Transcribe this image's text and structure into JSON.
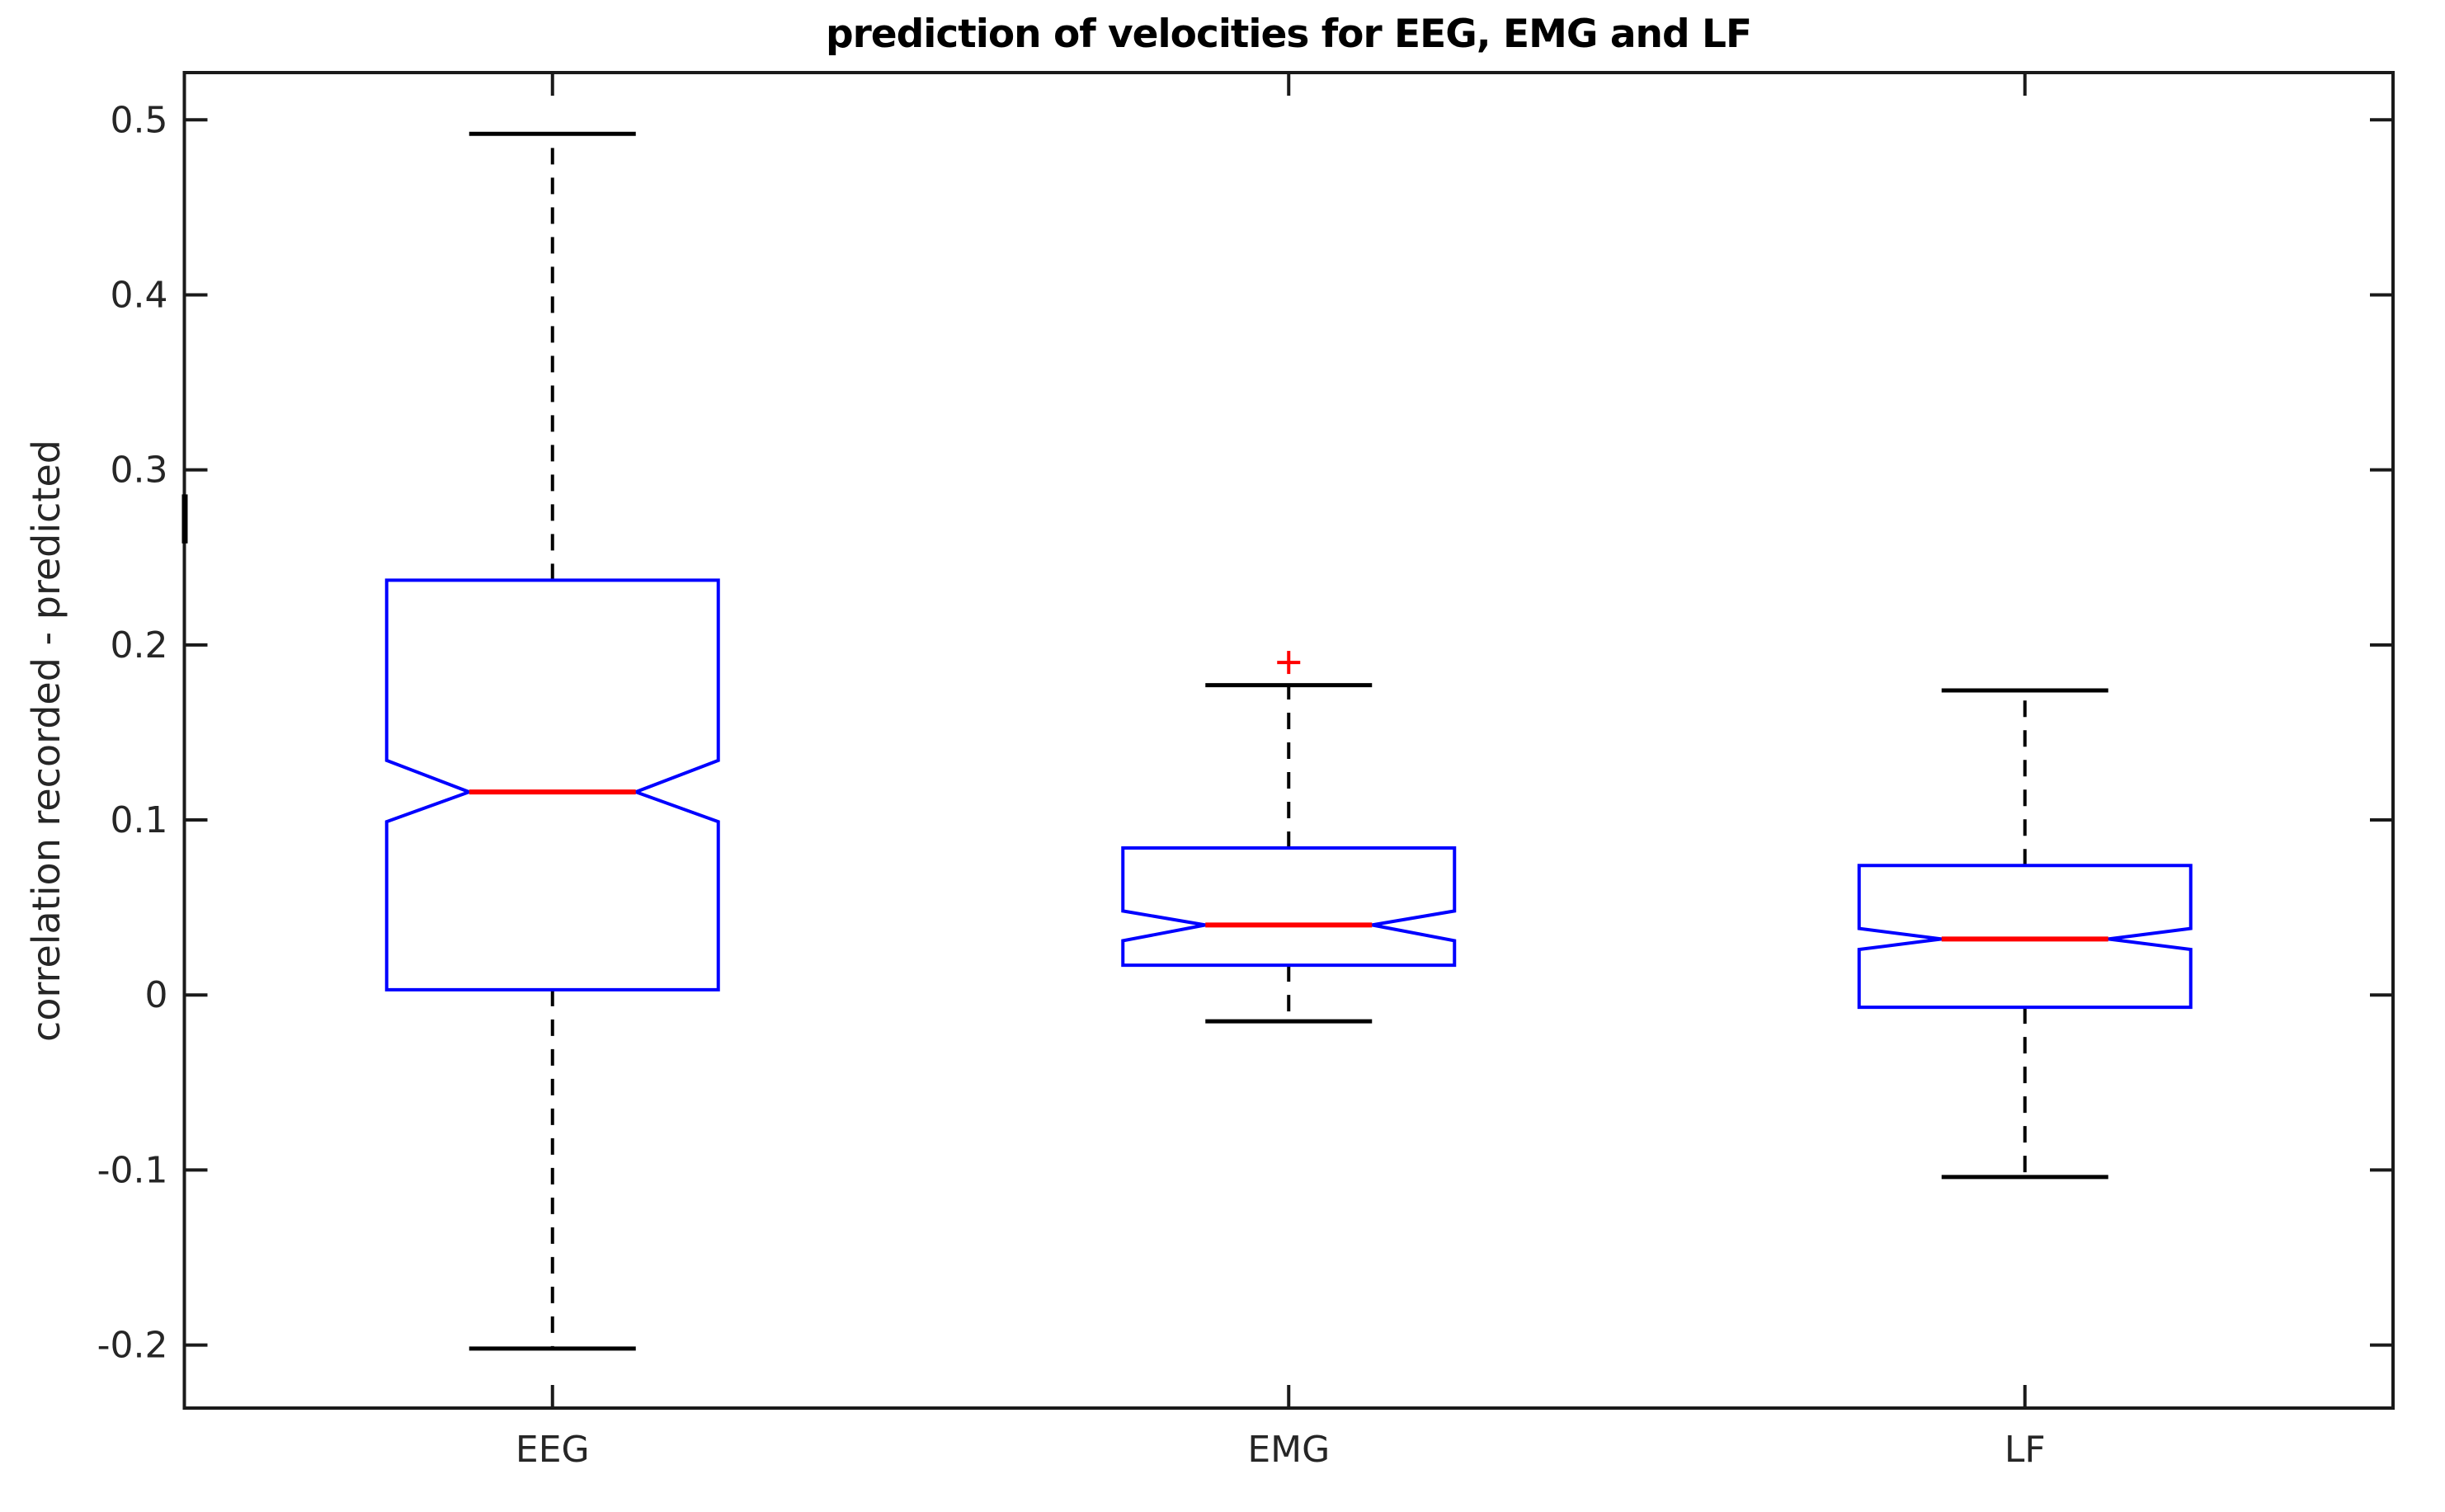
{
  "figure": {
    "title": "prediction of velocities for EEG, EMG and LF",
    "ylabel": "correlation recorded - predicted"
  },
  "colors": {
    "background": "#ffffff",
    "box": "#0000ff",
    "median": "#ff0000",
    "whisker": "#000000",
    "outlier": "#ff0000",
    "axis": "#1a1a1a",
    "tick_text": "#262626",
    "title_text": "#000000"
  },
  "chart_data": {
    "type": "boxplot",
    "notched": true,
    "title": "prediction of velocities for EEG, EMG and LF",
    "ylabel": "correlation recorded - predicted",
    "xlabel": "",
    "categories": [
      "EEG",
      "EMG",
      "LF"
    ],
    "ylim": [
      -0.236,
      0.527
    ],
    "yticks": {
      "values": [
        0.5,
        0.4,
        0.3,
        0.2,
        0.1,
        0,
        -0.1,
        -0.2
      ],
      "labels": [
        "0.5",
        "0.4",
        "0.3",
        "0.2",
        "0.1",
        "0",
        "-0.1",
        "-0.2"
      ]
    },
    "grid": false,
    "legend": "none",
    "series": [
      {
        "label": "EEG",
        "median": 0.116,
        "q1": 0.003,
        "q3": 0.237,
        "notch_low": 0.099,
        "notch_high": 0.134,
        "whisker_low": -0.202,
        "whisker_high": 0.492,
        "outliers": []
      },
      {
        "label": "EMG",
        "median": 0.04,
        "q1": 0.017,
        "q3": 0.084,
        "notch_low": 0.031,
        "notch_high": 0.048,
        "whisker_low": -0.015,
        "whisker_high": 0.177,
        "outliers": [
          0.19
        ]
      },
      {
        "label": "LF",
        "median": 0.032,
        "q1": -0.007,
        "q3": 0.074,
        "notch_low": 0.026,
        "notch_high": 0.038,
        "whisker_low": -0.104,
        "whisker_high": 0.174,
        "outliers": []
      }
    ],
    "annotations": [
      {
        "name": "left-spine-artifact",
        "description": "short thick black segment on left axis spine",
        "value_from": 0.258,
        "value_to": 0.286
      }
    ]
  }
}
